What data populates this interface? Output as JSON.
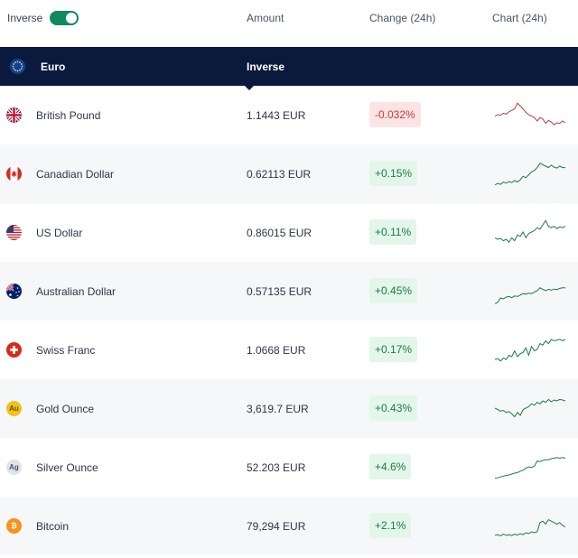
{
  "header": {
    "toggle_label": "Inverse",
    "toggle_on": true,
    "col_amount": "Amount",
    "col_change": "Change (24h)",
    "col_chart": "Chart (24h)"
  },
  "base": {
    "name": "Euro",
    "inverse_label": "Inverse",
    "flag_color": "#0a3fa8"
  },
  "colors": {
    "positive": "#1f7a45",
    "negative": "#c23a3a",
    "toggle": "#0f8a5f",
    "base_bg": "#0a1a3c"
  },
  "rows": [
    {
      "name": "British Pound",
      "amount": "1.1443 EUR",
      "change": "-0.032%",
      "dir": "down",
      "flag": "gb-flag-icon",
      "spark": [
        0.55,
        0.5,
        0.52,
        0.45,
        0.48,
        0.4,
        0.35,
        0.3,
        0.1,
        0.2,
        0.3,
        0.42,
        0.5,
        0.55,
        0.6,
        0.72,
        0.6,
        0.65,
        0.8,
        0.7,
        0.75,
        0.85,
        0.78,
        0.8,
        0.72,
        0.78
      ]
    },
    {
      "name": "Canadian Dollar",
      "amount": "0.62113 EUR",
      "change": "+0.15%",
      "dir": "up",
      "flag": "ca-flag-icon",
      "spark": [
        0.9,
        0.85,
        0.88,
        0.8,
        0.84,
        0.78,
        0.82,
        0.75,
        0.8,
        0.72,
        0.6,
        0.65,
        0.55,
        0.45,
        0.4,
        0.3,
        0.15,
        0.2,
        0.25,
        0.3,
        0.22,
        0.28,
        0.32,
        0.25,
        0.3,
        0.3
      ]
    },
    {
      "name": "US Dollar",
      "amount": "0.86015 EUR",
      "change": "+0.11%",
      "dir": "up",
      "flag": "us-flag-icon",
      "spark": [
        0.7,
        0.75,
        0.72,
        0.8,
        0.75,
        0.85,
        0.7,
        0.8,
        0.6,
        0.65,
        0.5,
        0.7,
        0.55,
        0.5,
        0.45,
        0.35,
        0.4,
        0.25,
        0.1,
        0.3,
        0.35,
        0.3,
        0.38,
        0.32,
        0.35,
        0.3
      ]
    },
    {
      "name": "Australian Dollar",
      "amount": "0.57135 EUR",
      "change": "+0.45%",
      "dir": "up",
      "flag": "au-flag-icon",
      "spark": [
        0.95,
        0.9,
        0.75,
        0.78,
        0.72,
        0.7,
        0.74,
        0.68,
        0.7,
        0.65,
        0.6,
        0.62,
        0.58,
        0.6,
        0.55,
        0.5,
        0.4,
        0.45,
        0.5,
        0.45,
        0.48,
        0.44,
        0.46,
        0.42,
        0.4,
        0.4
      ]
    },
    {
      "name": "Swiss Franc",
      "amount": "1.0668 EUR",
      "change": "+0.17%",
      "dir": "up",
      "flag": "ch-flag-icon",
      "spark": [
        0.85,
        0.82,
        0.9,
        0.8,
        0.85,
        0.7,
        0.75,
        0.55,
        0.75,
        0.65,
        0.6,
        0.45,
        0.7,
        0.4,
        0.55,
        0.5,
        0.3,
        0.35,
        0.2,
        0.3,
        0.15,
        0.2,
        0.18,
        0.15,
        0.2,
        0.15
      ]
    },
    {
      "name": "Gold Ounce",
      "amount": "3,619.7 EUR",
      "change": "+0.43%",
      "dir": "up",
      "flag": "gold-icon",
      "spark": [
        0.5,
        0.55,
        0.6,
        0.58,
        0.65,
        0.62,
        0.7,
        0.8,
        0.65,
        0.75,
        0.55,
        0.5,
        0.45,
        0.35,
        0.4,
        0.3,
        0.35,
        0.25,
        0.3,
        0.2,
        0.28,
        0.22,
        0.25,
        0.2,
        0.22,
        0.25
      ]
    },
    {
      "name": "Silver Ounce",
      "amount": "52.203 EUR",
      "change": "+4.6%",
      "dir": "up",
      "flag": "silver-icon",
      "spark": [
        0.9,
        0.88,
        0.85,
        0.82,
        0.8,
        0.78,
        0.75,
        0.72,
        0.7,
        0.65,
        0.62,
        0.55,
        0.5,
        0.52,
        0.48,
        0.3,
        0.32,
        0.28,
        0.25,
        0.26,
        0.22,
        0.2,
        0.18,
        0.2,
        0.18,
        0.2
      ]
    },
    {
      "name": "Bitcoin",
      "amount": "79,294 EUR",
      "change": "+2.1%",
      "dir": "up",
      "flag": "btc-icon",
      "spark": [
        0.85,
        0.82,
        0.86,
        0.8,
        0.84,
        0.82,
        0.85,
        0.8,
        0.83,
        0.78,
        0.82,
        0.75,
        0.78,
        0.72,
        0.75,
        0.72,
        0.4,
        0.35,
        0.45,
        0.3,
        0.35,
        0.4,
        0.45,
        0.4,
        0.5,
        0.55
      ]
    }
  ]
}
